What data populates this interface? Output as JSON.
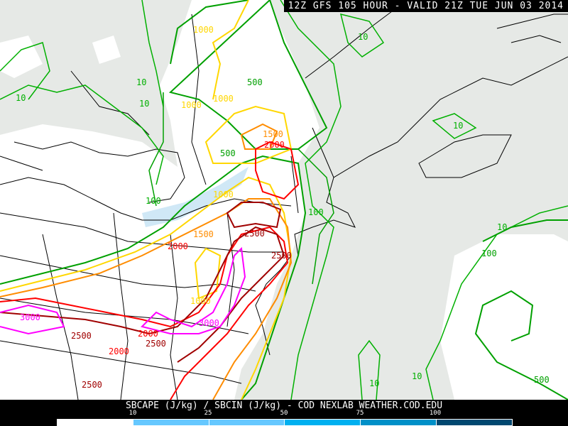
{
  "title": "12Z GFS 105 HOUR - VALID 21Z TUE JUN 03 2014",
  "footer": "SBCAPE (J/kg) / SBCIN (J/kg) - COD NEXLAB   WEATHER.COD.EDU",
  "colorbar": {
    "ticks": [
      "10",
      "25",
      "50",
      "75",
      "100"
    ],
    "colors": [
      "#ffffff",
      "#66c8ff",
      "#66c8ff",
      "#00b0f0",
      "#0090c8",
      "#004870"
    ]
  },
  "contour_colors": {
    "cape_500": "#00a000",
    "cape_1000": "#ffd700",
    "cape_1500": "#ff8c00",
    "cape_2000": "#ff0000",
    "cape_2500": "#a00000",
    "cape_3000": "#ff00ff",
    "cin_10": "#00b000",
    "cin_100": "#008000"
  },
  "labels": [
    {
      "t": "1000",
      "c": "#ffd700"
    },
    {
      "t": "10",
      "c": "#00b000"
    },
    {
      "t": "500",
      "c": "#00a000"
    },
    {
      "t": "10",
      "c": "#00b000"
    },
    {
      "t": "1000",
      "c": "#ffd700"
    },
    {
      "t": "1000",
      "c": "#ffd700"
    },
    {
      "t": "10",
      "c": "#00b000"
    },
    {
      "t": "10",
      "c": "#00b000"
    },
    {
      "t": "1500",
      "c": "#ff8c00"
    },
    {
      "t": "2000",
      "c": "#ff0000"
    },
    {
      "t": "10",
      "c": "#00b000"
    },
    {
      "t": "500",
      "c": "#00a000"
    },
    {
      "t": "1000",
      "c": "#ffd700"
    },
    {
      "t": "100",
      "c": "#00b000"
    },
    {
      "t": "2500",
      "c": "#a00000"
    },
    {
      "t": "1500",
      "c": "#ff8c00"
    },
    {
      "t": "2000",
      "c": "#ff0000"
    },
    {
      "t": "10",
      "c": "#00b000"
    },
    {
      "t": "100",
      "c": "#00b000"
    },
    {
      "t": "100",
      "c": "#00a000"
    },
    {
      "t": "2500",
      "c": "#a00000"
    },
    {
      "t": "3000",
      "c": "#ff00ff"
    },
    {
      "t": "2500",
      "c": "#a00000"
    },
    {
      "t": "2000",
      "c": "#ff0000"
    },
    {
      "t": "2500",
      "c": "#a00000"
    },
    {
      "t": "1000",
      "c": "#ffd700"
    },
    {
      "t": "3000",
      "c": "#ff00ff"
    },
    {
      "t": "2000",
      "c": "#ff0000"
    },
    {
      "t": "2500",
      "c": "#a00000"
    },
    {
      "t": "10",
      "c": "#00b000"
    },
    {
      "t": "10",
      "c": "#00b000"
    },
    {
      "t": "500",
      "c": "#00a000"
    }
  ]
}
